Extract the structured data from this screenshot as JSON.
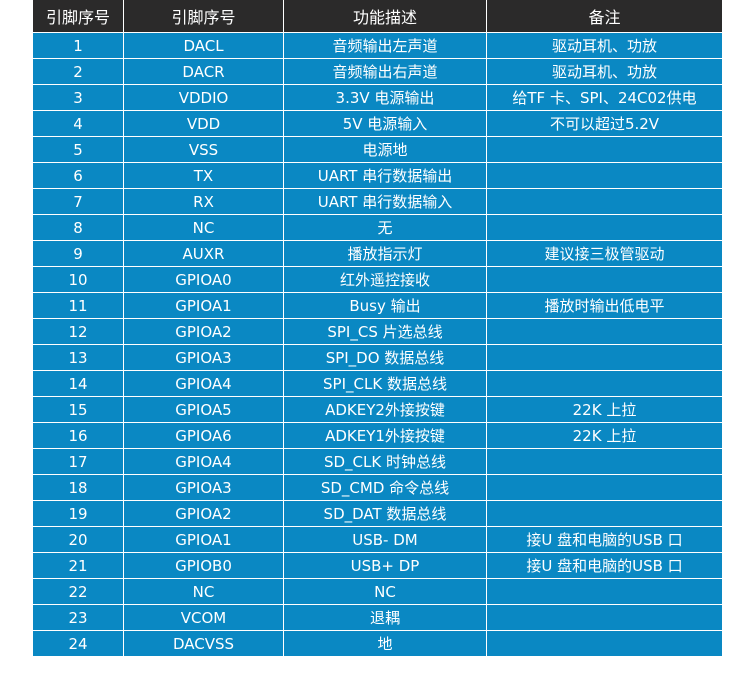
{
  "table": {
    "headers": [
      "引脚序号",
      "引脚序号",
      "功能描述",
      "备注"
    ],
    "rows": [
      [
        "1",
        "DACL",
        "音频输出左声道",
        "驱动耳机、功放"
      ],
      [
        "2",
        "DACR",
        "音频输出右声道",
        "驱动耳机、功放"
      ],
      [
        "3",
        "VDDIO",
        "3.3V 电源输出",
        "给TF 卡、SPI、24C02供电"
      ],
      [
        "4",
        "VDD",
        "5V 电源输入",
        "不可以超过5.2V"
      ],
      [
        "5",
        "VSS",
        "电源地",
        ""
      ],
      [
        "6",
        "TX",
        "UART 串行数据输出",
        ""
      ],
      [
        "7",
        "RX",
        "UART 串行数据输入",
        ""
      ],
      [
        "8",
        "NC",
        "无",
        ""
      ],
      [
        "9",
        "AUXR",
        "播放指示灯",
        "建议接三极管驱动"
      ],
      [
        "10",
        "GPIOA0",
        "红外遥控接收",
        ""
      ],
      [
        "11",
        "GPIOA1",
        "Busy 输出",
        "播放时输出低电平"
      ],
      [
        "12",
        "GPIOA2",
        "SPI_CS 片选总线",
        ""
      ],
      [
        "13",
        "GPIOA3",
        "SPI_DO 数据总线",
        ""
      ],
      [
        "14",
        "GPIOA4",
        "SPI_CLK 数据总线",
        ""
      ],
      [
        "15",
        "GPIOA5",
        "ADKEY2外接按键",
        "22K 上拉"
      ],
      [
        "16",
        "GPIOA6",
        "ADKEY1外接按键",
        "22K 上拉"
      ],
      [
        "17",
        "GPIOA4",
        "SD_CLK 时钟总线",
        ""
      ],
      [
        "18",
        "GPIOA3",
        "SD_CMD 命令总线",
        ""
      ],
      [
        "19",
        "GPIOA2",
        "SD_DAT 数据总线",
        ""
      ],
      [
        "20",
        "GPIOA1",
        "USB- DM",
        "接U 盘和电脑的USB 口"
      ],
      [
        "21",
        "GPIOB0",
        "USB+ DP",
        "接U 盘和电脑的USB 口"
      ],
      [
        "22",
        "NC",
        "NC",
        ""
      ],
      [
        "23",
        "VCOM",
        "退耦",
        ""
      ],
      [
        "24",
        "DACVSS",
        "地",
        ""
      ]
    ]
  },
  "colors": {
    "header": "#2b2a2a",
    "row": "#0a88c3"
  }
}
